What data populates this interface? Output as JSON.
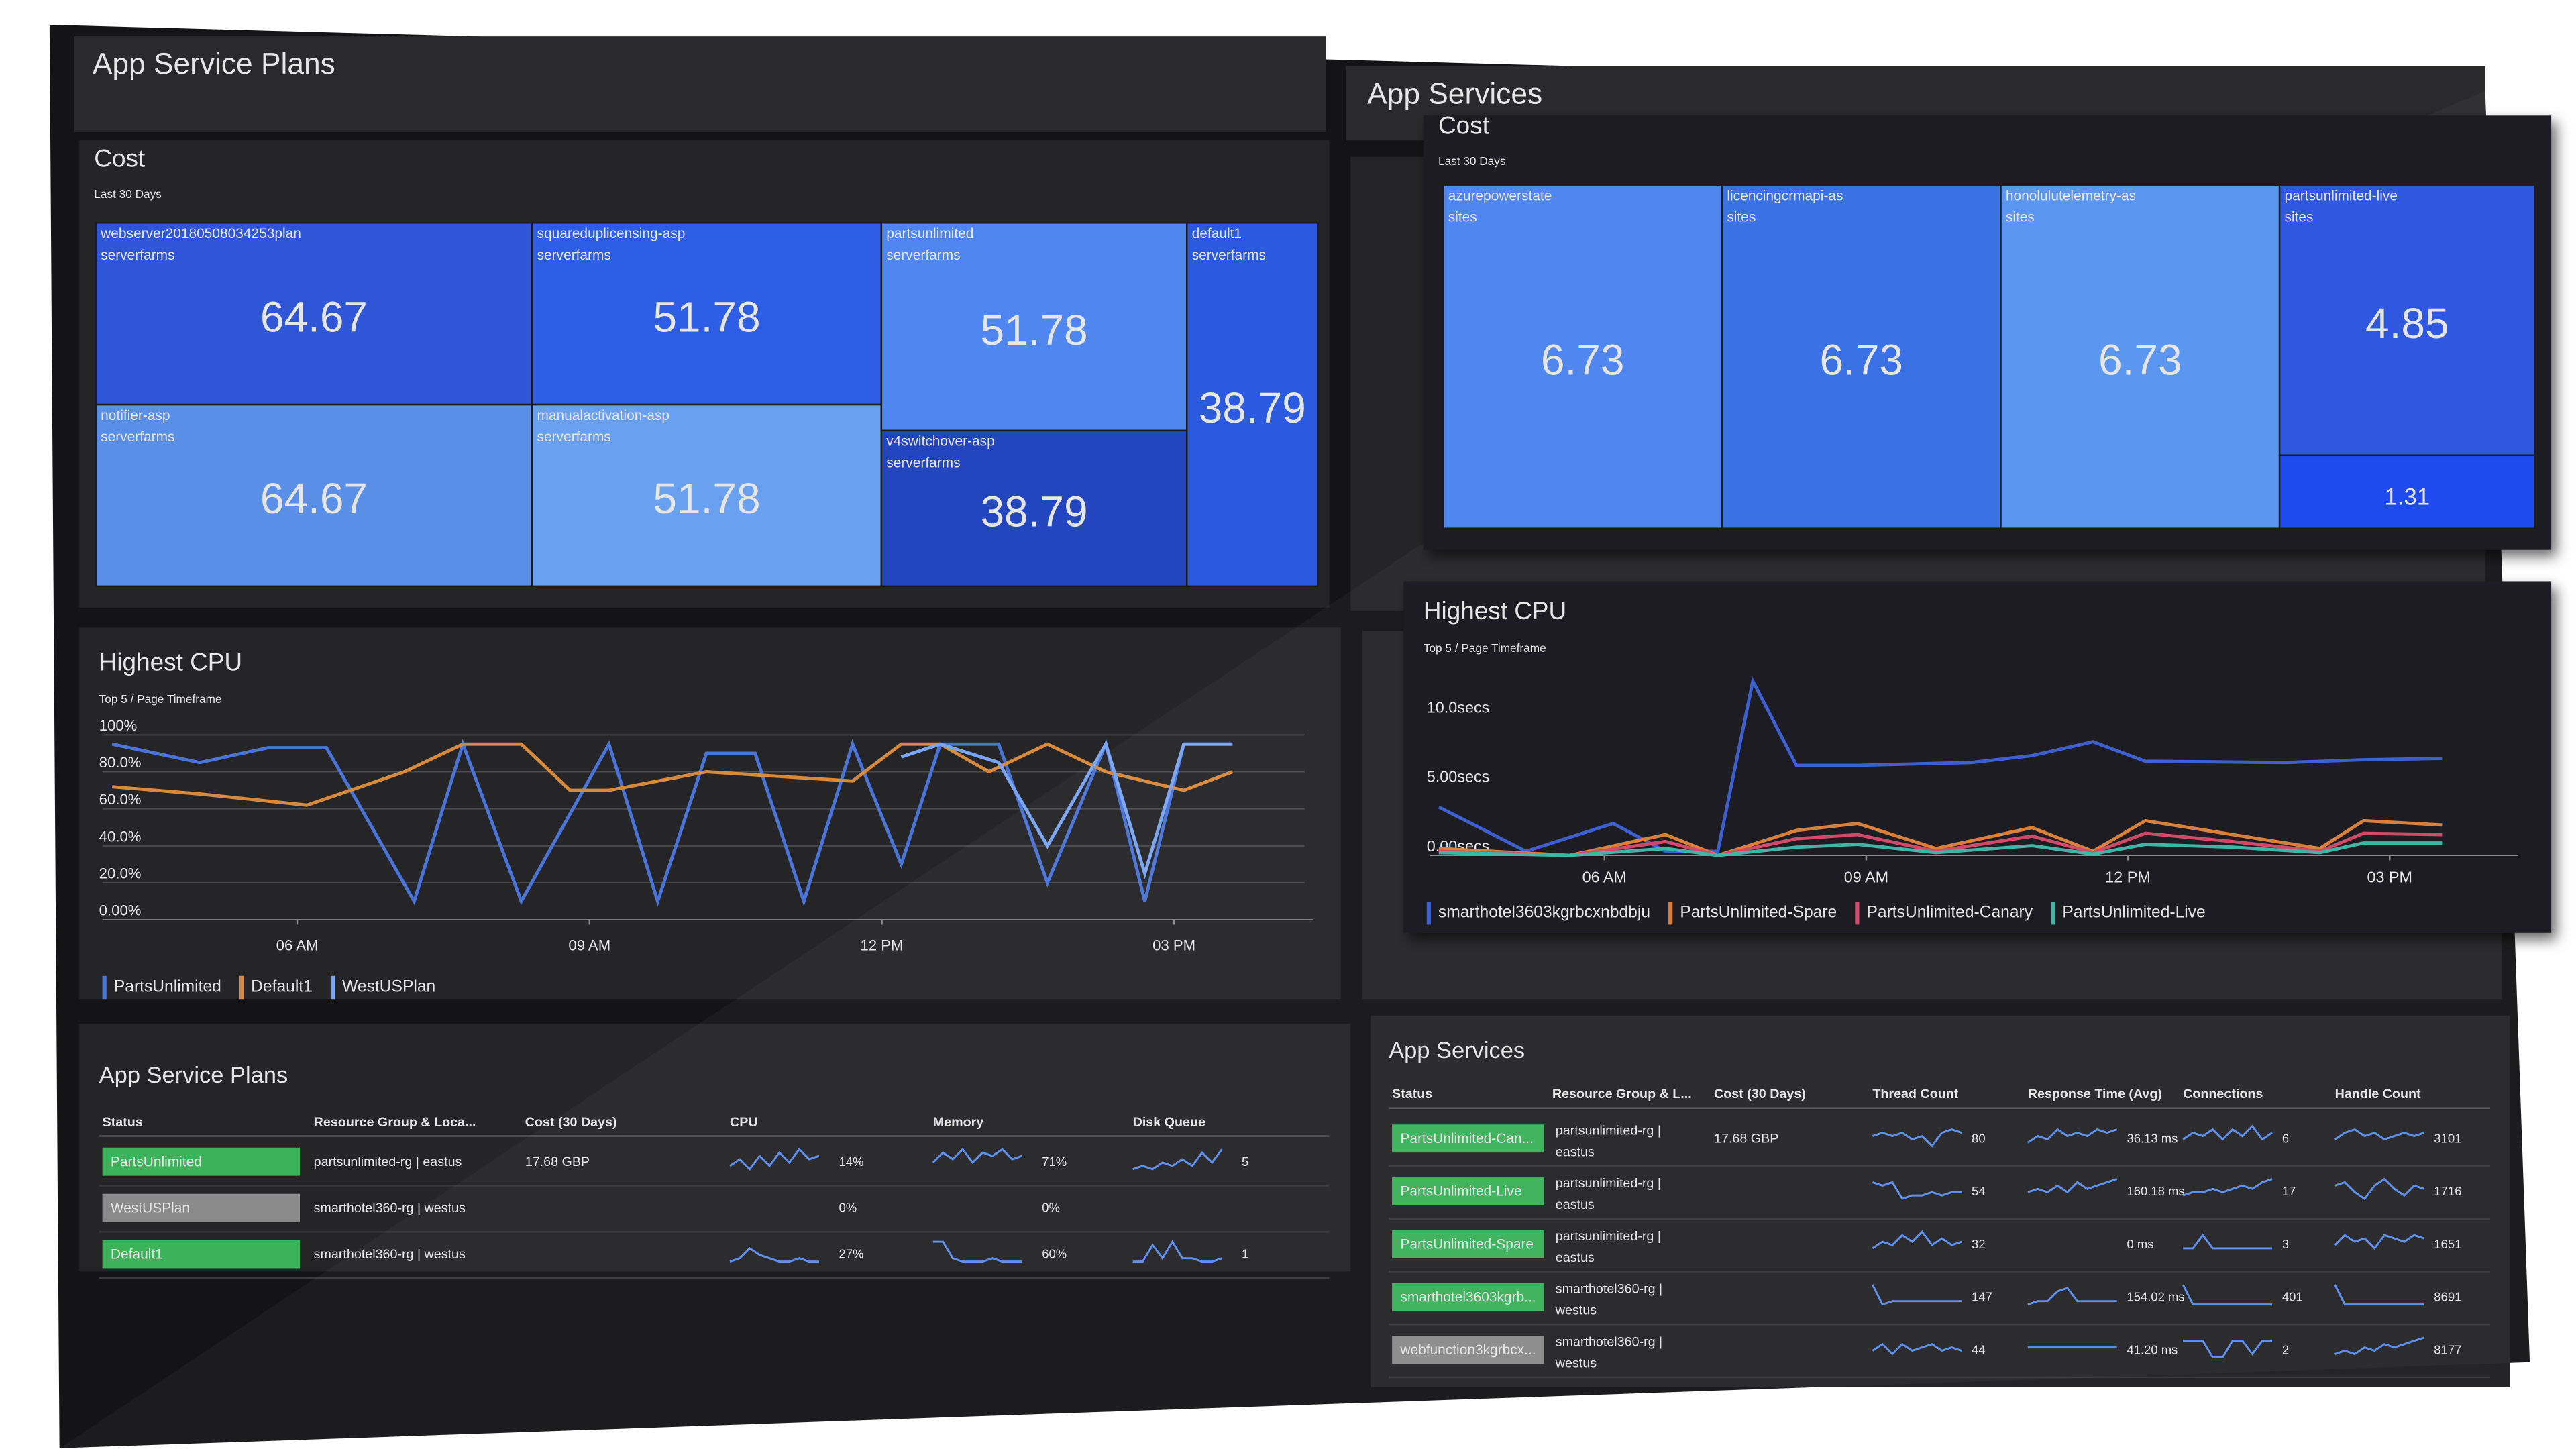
{
  "sections": {
    "left_title": "App Service Plans",
    "right_title": "App Services"
  },
  "chart_data": [
    {
      "type": "treemap",
      "title": "Cost",
      "subtitle": "Last 30 Days",
      "columns": [
        [
          {
            "name": "webserver20180508034253plan",
            "kind": "serverfarms",
            "value": 64.67,
            "color": "#2f56d6"
          },
          {
            "name": "notifier-asp",
            "kind": "serverfarms",
            "value": 64.67,
            "color": "#5a8fe8"
          }
        ],
        [
          {
            "name": "squareduplicensing-asp",
            "kind": "serverfarms",
            "value": 51.78,
            "color": "#2f5ee6"
          },
          {
            "name": "manualactivation-asp",
            "kind": "serverfarms",
            "value": 51.78,
            "color": "#6aa0f0"
          }
        ],
        [
          {
            "name": "partsunlimited",
            "kind": "serverfarms",
            "value": 51.78,
            "color": "#4f86ef"
          },
          {
            "name": "v4switchover-asp",
            "kind": "serverfarms",
            "value": 38.79,
            "color": "#2445c0"
          }
        ],
        [
          {
            "name": "default1",
            "kind": "serverfarms",
            "value": 38.79,
            "color": "#2b5ae0"
          }
        ]
      ]
    },
    {
      "type": "treemap",
      "title": "Cost",
      "subtitle": "Last 30 Days",
      "columns": [
        [
          {
            "name": "azurepowerstate",
            "kind": "sites",
            "value": 6.73,
            "color": "#4f86ef"
          }
        ],
        [
          {
            "name": "licencingcrmapi-as",
            "kind": "sites",
            "value": 6.73,
            "color": "#3a72e6"
          }
        ],
        [
          {
            "name": "honolulutelemetry-as",
            "kind": "sites",
            "value": 6.73,
            "color": "#5b96f0"
          }
        ],
        [
          {
            "name": "partsunlimited-live",
            "kind": "sites",
            "value": 4.85,
            "color": "#2f57e0"
          },
          {
            "value": 1.31,
            "color": "#1f4af0"
          }
        ]
      ]
    },
    {
      "type": "line",
      "title": "Highest CPU",
      "subtitle": "Top 5 / Page Timeframe",
      "xlim": [
        4,
        16
      ],
      "xticks": [
        {
          "value": 6,
          "label": "06 AM"
        },
        {
          "value": 9,
          "label": "09 AM"
        },
        {
          "value": 12,
          "label": "12 PM"
        },
        {
          "value": 15,
          "label": "03 PM"
        }
      ],
      "ylim": [
        0,
        100
      ],
      "yticks": [
        {
          "value": 0,
          "label": "0.00%"
        },
        {
          "value": 20,
          "label": "20.0%"
        },
        {
          "value": 40,
          "label": "40.0%"
        },
        {
          "value": 60,
          "label": "60.0%"
        },
        {
          "value": 80,
          "label": "80.0%"
        },
        {
          "value": 100,
          "label": "100%"
        }
      ],
      "grid": true,
      "series": [
        {
          "name": "PartsUnlimited",
          "color": "#4a74d8",
          "x": [
            4.1,
            5.0,
            5.7,
            6.3,
            7.2,
            7.7,
            8.3,
            9.2,
            9.7,
            10.2,
            10.7,
            11.2,
            11.7,
            12.2,
            12.6,
            13.2,
            13.7,
            14.3,
            14.7,
            15.1,
            15.6
          ],
          "values": [
            95,
            85,
            93,
            93,
            10,
            95,
            10,
            95,
            10,
            90,
            90,
            10,
            95,
            30,
            95,
            95,
            20,
            95,
            10,
            95,
            95
          ]
        },
        {
          "name": "Default1",
          "color": "#d9893a",
          "x": [
            4.1,
            5.0,
            6.1,
            7.1,
            7.7,
            8.3,
            8.8,
            9.2,
            10.2,
            11.7,
            12.2,
            12.6,
            13.1,
            13.7,
            14.3,
            15.1,
            15.6
          ],
          "values": [
            72,
            68,
            62,
            80,
            95,
            95,
            70,
            70,
            80,
            75,
            95,
            95,
            80,
            95,
            80,
            70,
            80
          ]
        },
        {
          "name": "WestUSPlan",
          "color": "#7aa4f4",
          "x": [
            12.2,
            12.6,
            13.2,
            13.7,
            14.3,
            14.7,
            15.1,
            15.6
          ],
          "values": [
            88,
            95,
            85,
            40,
            95,
            25,
            95,
            95
          ]
        }
      ]
    },
    {
      "type": "line",
      "title": "Highest CPU",
      "subtitle": "Top 5 / Page Timeframe",
      "xlim": [
        4,
        16
      ],
      "xticks": [
        {
          "value": 6,
          "label": "06 AM"
        },
        {
          "value": 9,
          "label": "09 AM"
        },
        {
          "value": 12,
          "label": "12 PM"
        },
        {
          "value": 15,
          "label": "03 PM"
        }
      ],
      "ylim": [
        0,
        13
      ],
      "yticks": [
        {
          "value": 0,
          "label": "0.00secs"
        },
        {
          "value": 5,
          "label": "5.00secs"
        },
        {
          "value": 10,
          "label": "10.0secs"
        }
      ],
      "grid": false,
      "series": [
        {
          "name": "smarthotel3603kgrbcxnbdbju",
          "color": "#3d5fcf",
          "x": [
            4.1,
            5.1,
            6.1,
            6.7,
            7.3,
            7.7,
            8.2,
            8.9,
            10.2,
            10.9,
            11.6,
            12.2,
            13.8,
            14.7,
            15.6
          ],
          "values": [
            3.5,
            0.3,
            2.3,
            0.3,
            0.3,
            12.6,
            6.5,
            6.5,
            6.7,
            7.2,
            8.2,
            6.8,
            6.7,
            6.9,
            7.0
          ]
        },
        {
          "name": "PartsUnlimited-Spare",
          "color": "#d9803a",
          "x": [
            4.1,
            5.6,
            6.7,
            7.3,
            8.2,
            8.9,
            9.8,
            10.9,
            11.6,
            12.2,
            13.2,
            14.2,
            14.7,
            15.6
          ],
          "values": [
            0.5,
            0,
            1.5,
            0,
            1.8,
            2.3,
            0.5,
            2.0,
            0.3,
            2.5,
            1.5,
            0.5,
            2.5,
            2.2
          ]
        },
        {
          "name": "PartsUnlimited-Canary",
          "color": "#d04a6a",
          "x": [
            4.1,
            5.6,
            6.7,
            7.3,
            8.2,
            8.9,
            9.8,
            10.9,
            11.6,
            12.2,
            13.2,
            14.2,
            14.7,
            15.6
          ],
          "values": [
            0.3,
            0,
            1.0,
            0,
            1.2,
            1.5,
            0.3,
            1.4,
            0.2,
            1.6,
            1.0,
            0.3,
            1.6,
            1.5
          ]
        },
        {
          "name": "PartsUnlimited-Live",
          "color": "#3fb5a8",
          "x": [
            4.1,
            5.6,
            6.7,
            7.3,
            8.2,
            8.9,
            9.8,
            10.9,
            11.6,
            12.2,
            13.2,
            14.2,
            14.7,
            15.6
          ],
          "values": [
            0.2,
            0,
            0.5,
            0,
            0.6,
            0.8,
            0.2,
            0.7,
            0.1,
            0.8,
            0.6,
            0.2,
            0.9,
            0.9
          ]
        }
      ]
    }
  ],
  "tables": [
    {
      "title": "App Service Plans",
      "columns": [
        "Status",
        "Resource Group & Loca...",
        "Cost (30 Days)",
        "CPU",
        "Memory",
        "Disk Queue"
      ],
      "rows": [
        {
          "status": "PartsUnlimited",
          "status_color": "#3cb25a",
          "cells": [
            "partsunlimited-rg | eastus",
            "17.68 GBP",
            {
              "spark": [
                3,
                5,
                2,
                6,
                3,
                7,
                4,
                8,
                5,
                6
              ],
              "label": "14%"
            },
            {
              "spark": [
                4,
                7,
                5,
                8,
                4,
                7,
                6,
                8,
                5,
                6
              ],
              "label": "71%"
            },
            {
              "spark": [
                2,
                3,
                2,
                4,
                3,
                5,
                3,
                7,
                4,
                8
              ],
              "label": "5"
            }
          ]
        },
        {
          "status": "WestUSPlan",
          "status_color": "#8a8a8a",
          "cells": [
            "smarthotel360-rg | westus",
            null,
            {
              "label": "0%"
            },
            {
              "label": "0%"
            },
            null
          ]
        },
        {
          "status": "Default1",
          "status_color": "#3cb25a",
          "cells": [
            "smarthotel360-rg | westus",
            null,
            {
              "spark": [
                2,
                3,
                6,
                4,
                3,
                2,
                2,
                3,
                2,
                2
              ],
              "label": "27%"
            },
            {
              "spark": [
                8,
                8,
                3,
                2,
                2,
                2,
                3,
                2,
                2,
                2
              ],
              "label": "60%"
            },
            {
              "spark": [
                2,
                2,
                7,
                3,
                8,
                3,
                3,
                2,
                2,
                3
              ],
              "label": "1"
            }
          ]
        }
      ]
    },
    {
      "title": "App Services",
      "columns": [
        "Status",
        "Resource Group & L...",
        "Cost (30 Days)",
        "Thread Count",
        "Response Time (Avg)",
        "Connections",
        "Handle Count"
      ],
      "rows": [
        {
          "status": "PartsUnlimited-Can...",
          "status_color": "#3cb25a",
          "cells": [
            [
              "partsunlimited-rg |",
              "eastus"
            ],
            "17.68 GBP",
            {
              "spark": [
                5,
                6,
                5,
                6,
                4,
                5,
                2,
                6,
                7,
                6
              ],
              "label": "80"
            },
            {
              "spark": [
                3,
                5,
                4,
                7,
                5,
                6,
                5,
                7,
                6,
                7
              ],
              "label": "36.13 ms"
            },
            {
              "spark": [
                4,
                6,
                5,
                7,
                4,
                7,
                5,
                8,
                4,
                6
              ],
              "label": "6"
            },
            {
              "spark": [
                4,
                6,
                7,
                5,
                6,
                4,
                5,
                6,
                5,
                6
              ],
              "label": "3101"
            }
          ]
        },
        {
          "status": "PartsUnlimited-Live",
          "status_color": "#3cb25a",
          "cells": [
            [
              "partsunlimited-rg |",
              "eastus"
            ],
            null,
            {
              "spark": [
                7,
                6,
                7,
                2,
                3,
                3,
                4,
                3,
                4,
                4
              ],
              "label": "54"
            },
            {
              "spark": [
                4,
                5,
                4,
                6,
                4,
                7,
                5,
                6,
                7,
                8
              ],
              "label": "160.18 ms"
            },
            {
              "spark": [
                3,
                4,
                4,
                5,
                4,
                5,
                6,
                5,
                7,
                8
              ],
              "label": "17"
            },
            {
              "spark": [
                6,
                7,
                4,
                2,
                6,
                8,
                5,
                3,
                6,
                5
              ],
              "label": "1716"
            }
          ]
        },
        {
          "status": "PartsUnlimited-Spare",
          "status_color": "#3cb25a",
          "cells": [
            [
              "partsunlimited-rg |",
              "eastus"
            ],
            null,
            {
              "spark": [
                3,
                5,
                4,
                7,
                5,
                8,
                4,
                6,
                4,
                5
              ],
              "label": "32"
            },
            {
              "label": "0 ms"
            },
            {
              "spark": [
                3,
                3,
                7,
                3,
                3,
                3,
                3,
                3,
                3,
                3
              ],
              "label": "3"
            },
            {
              "spark": [
                4,
                7,
                5,
                6,
                3,
                7,
                6,
                5,
                7,
                6
              ],
              "label": "1651"
            }
          ]
        },
        {
          "status": "smarthotel3603kgrb...",
          "status_color": "#3cb25a",
          "cells": [
            [
              "smarthotel360-rg |",
              "westus"
            ],
            null,
            {
              "spark": [
                8,
                2,
                3,
                3,
                3,
                3,
                3,
                3,
                3,
                3
              ],
              "label": "147"
            },
            {
              "spark": [
                2,
                3,
                3,
                6,
                7,
                3,
                3,
                3,
                3,
                3
              ],
              "label": "154.02 ms"
            },
            {
              "spark": [
                8,
                2,
                2,
                2,
                2,
                2,
                2,
                2,
                2,
                2
              ],
              "label": "401"
            },
            {
              "spark": [
                8,
                2,
                2,
                2,
                2,
                2,
                2,
                2,
                2,
                2
              ],
              "label": "8691"
            }
          ]
        },
        {
          "status": "webfunction3kgrbcx...",
          "status_color": "#8a8a8a",
          "cells": [
            [
              "smarthotel360-rg |",
              "westus"
            ],
            null,
            {
              "spark": [
                4,
                6,
                3,
                6,
                4,
                5,
                6,
                4,
                5,
                4
              ],
              "label": "44"
            },
            {
              "spark": [
                5,
                5,
                5,
                5,
                5,
                5,
                5,
                5,
                5,
                5
              ],
              "label": "41.20 ms"
            },
            {
              "spark": [
                7,
                7,
                7,
                2,
                2,
                7,
                7,
                3,
                7,
                7
              ],
              "label": "2"
            },
            {
              "spark": [
                3,
                4,
                3,
                5,
                4,
                6,
                5,
                6,
                7,
                8
              ],
              "label": "8177"
            }
          ]
        }
      ]
    }
  ]
}
